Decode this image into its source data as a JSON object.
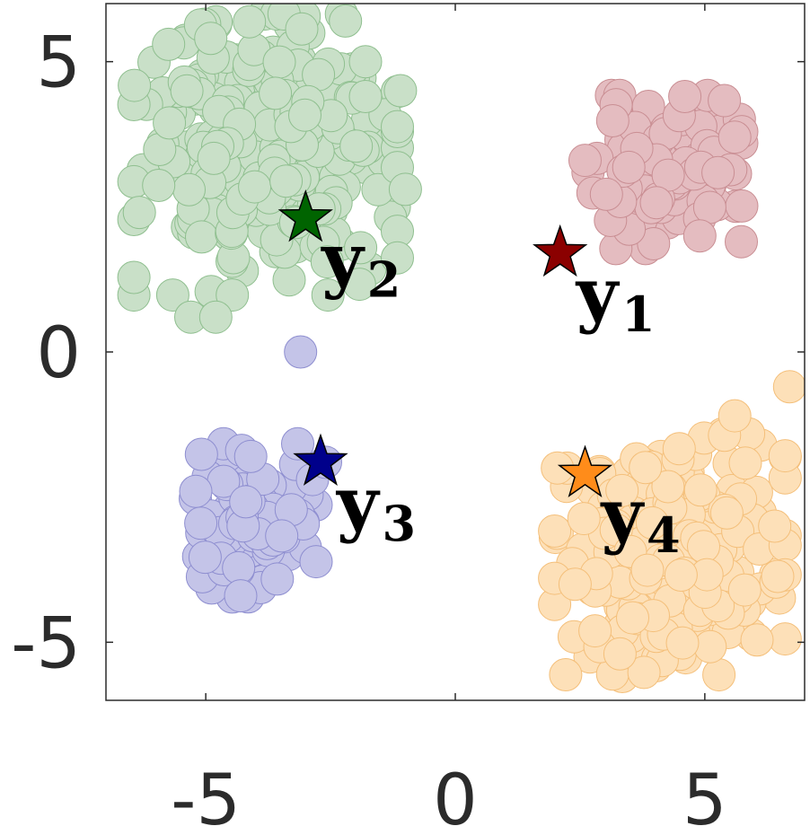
{
  "chart_data": {
    "type": "scatter",
    "title": "",
    "xlabel": "",
    "ylabel": "",
    "xlim": [
      -7,
      7
    ],
    "ylim": [
      -6,
      6
    ],
    "xticks": [
      -5,
      0,
      5
    ],
    "yticks": [
      -5,
      0,
      5
    ],
    "xtick_labels": [
      "-5",
      "0",
      "5"
    ],
    "ytick_labels": [
      "-5",
      "0",
      "5"
    ],
    "grid": false,
    "legend": "none",
    "clusters": [
      {
        "id": "c1",
        "fill": "#e4bcc0",
        "stroke": "#c98e93",
        "center": [
          4.2,
          3.1
        ],
        "spread": [
          0.7,
          0.6
        ],
        "count": 120,
        "seed": 11,
        "extra_points": [
          [
            4.6,
            4.4
          ],
          [
            5.6,
            3.7
          ],
          [
            2.6,
            3.3
          ],
          [
            4.9,
            2.0
          ]
        ]
      },
      {
        "id": "c2",
        "fill": "#c9e0c8",
        "stroke": "#8fbf8f",
        "center": [
          -3.8,
          3.4
        ],
        "spread": [
          1.2,
          1.1
        ],
        "count": 320,
        "seed": 23,
        "extra_points": [
          [
            -2.2,
            5.7
          ],
          [
            -4.9,
            5.4
          ],
          [
            -1.8,
            4.4
          ],
          [
            -1.0,
            2.8
          ],
          [
            -5.3,
            0.6
          ],
          [
            -4.8,
            0.6
          ],
          [
            -1.1,
            4.5
          ],
          [
            -1.8,
            5.0
          ]
        ]
      },
      {
        "id": "c3",
        "fill": "#c4c4e8",
        "stroke": "#8e8ed0",
        "center": [
          -4.0,
          -2.9
        ],
        "spread": [
          0.55,
          0.6
        ],
        "count": 110,
        "seed": 37,
        "extra_points": [
          [
            -3.1,
            0.0
          ],
          [
            -4.3,
            -4.2
          ],
          [
            -5.2,
            -2.4
          ],
          [
            -2.6,
            -1.9
          ],
          [
            -4.1,
            -1.8
          ]
        ]
      },
      {
        "id": "c4",
        "fill": "#fde0b8",
        "stroke": "#f4bf7a",
        "center": [
          4.3,
          -3.5
        ],
        "spread": [
          1.05,
          0.95
        ],
        "count": 260,
        "seed": 53,
        "extra_points": [
          [
            6.7,
            -0.6
          ],
          [
            5.6,
            -1.1
          ],
          [
            3.3,
            -5.2
          ],
          [
            6.4,
            -3.0
          ],
          [
            5.8,
            -4.1
          ],
          [
            2.4,
            -4.0
          ]
        ]
      }
    ],
    "centers": [
      {
        "name": "y",
        "index": "1",
        "x": 2.1,
        "y": 1.7,
        "color": "#8b0000"
      },
      {
        "name": "y",
        "index": "2",
        "x": -3.0,
        "y": 2.3,
        "color": "#006400"
      },
      {
        "name": "y",
        "index": "3",
        "x": -2.7,
        "y": -1.9,
        "color": "#00008b"
      },
      {
        "name": "y",
        "index": "4",
        "x": 2.6,
        "y": -2.1,
        "color": "#ff8c1a"
      }
    ]
  }
}
